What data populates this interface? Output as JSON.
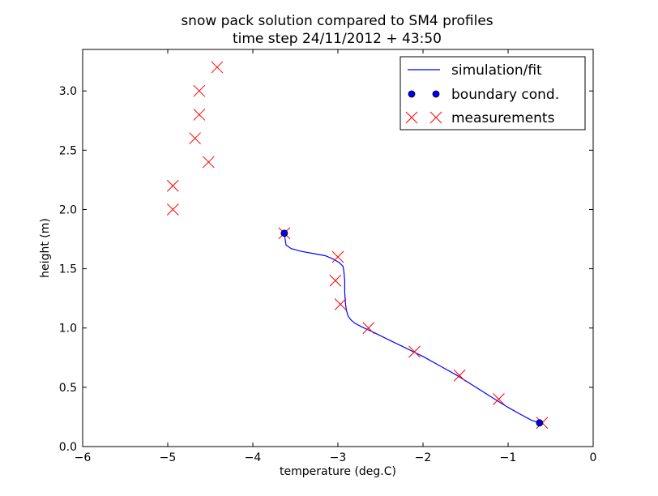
{
  "chart_data": {
    "type": "line",
    "title": "snow pack solution compared to SM4 profiles",
    "subtitle": "time step 24/11/2012 + 43:50",
    "xlabel": "temperature (deg.C)",
    "ylabel": "height (m)",
    "xlim": [
      -6,
      0
    ],
    "ylim": [
      0,
      3.35
    ],
    "x_ticks": [
      "−6",
      "−5",
      "−4",
      "−3",
      "−2",
      "−1",
      "0"
    ],
    "x_tick_values": [
      -6,
      -5,
      -4,
      -3,
      -2,
      -1,
      0
    ],
    "y_ticks": [
      "0.0",
      "0.5",
      "1.0",
      "1.5",
      "2.0",
      "2.5",
      "3.0"
    ],
    "y_tick_values": [
      0,
      0.5,
      1.0,
      1.5,
      2.0,
      2.5,
      3.0
    ],
    "grid": false,
    "legend": {
      "placement": "top-right",
      "entries": [
        "simulation/fit",
        "boundary cond.",
        "measurements"
      ]
    },
    "series": [
      {
        "name": "simulation/fit",
        "kind": "line",
        "color": "#0000ff",
        "x": [
          -3.63,
          -3.62,
          -3.61,
          -3.55,
          -3.45,
          -3.3,
          -3.15,
          -3.05,
          -2.98,
          -2.94,
          -2.93,
          -2.92,
          -2.92,
          -2.91,
          -2.9,
          -2.88,
          -2.85,
          -2.8,
          -2.72,
          -2.6,
          -2.4,
          -2.2,
          -2.0,
          -1.8,
          -1.6,
          -1.4,
          -1.2,
          -1.0,
          -0.85,
          -0.72,
          -0.63
        ],
        "y": [
          1.8,
          1.75,
          1.7,
          1.67,
          1.65,
          1.63,
          1.61,
          1.58,
          1.55,
          1.52,
          1.48,
          1.4,
          1.3,
          1.2,
          1.15,
          1.1,
          1.07,
          1.04,
          1.01,
          0.97,
          0.9,
          0.83,
          0.76,
          0.68,
          0.6,
          0.51,
          0.42,
          0.33,
          0.27,
          0.22,
          0.2
        ]
      },
      {
        "name": "boundary cond.",
        "kind": "marker-dot",
        "color": "#0000ff",
        "x": [
          -3.63,
          -0.63
        ],
        "y": [
          1.8,
          0.2
        ]
      },
      {
        "name": "measurements",
        "kind": "marker-x",
        "color": "#ff0000",
        "x": [
          -4.42,
          -4.63,
          -4.63,
          -4.68,
          -4.52,
          -4.94,
          -4.94,
          -3.63,
          -3.0,
          -3.03,
          -2.97,
          -2.64,
          -2.1,
          -1.57,
          -1.11,
          -0.6
        ],
        "y": [
          3.2,
          3.0,
          2.8,
          2.6,
          2.4,
          2.2,
          2.0,
          1.8,
          1.6,
          1.4,
          1.2,
          1.0,
          0.8,
          0.6,
          0.4,
          0.2
        ]
      }
    ]
  }
}
